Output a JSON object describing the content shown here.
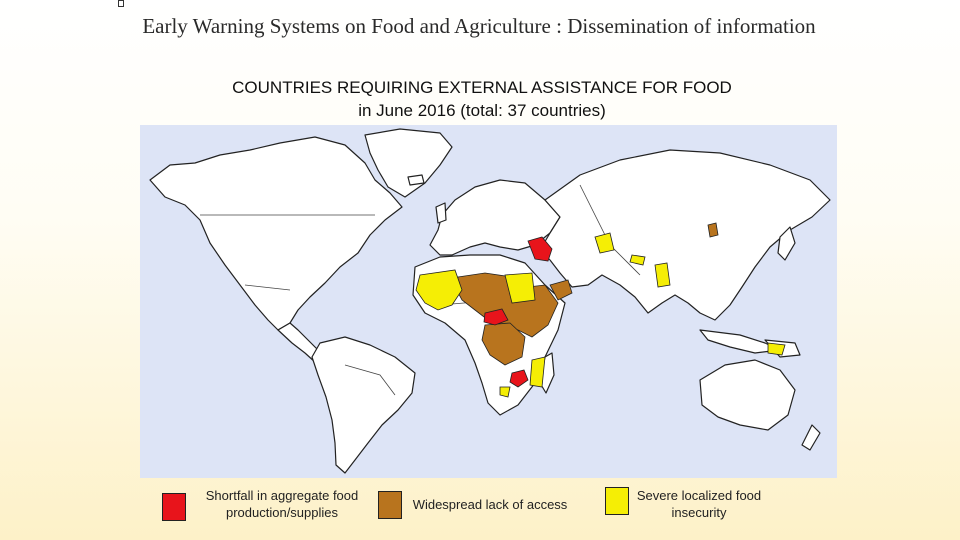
{
  "slide": {
    "title": "Early Warning Systems on Food and Agriculture : Dissemination of information"
  },
  "map": {
    "heading_line1": "COUNTRIES REQUIRING EXTERNAL ASSISTANCE FOR FOOD",
    "heading_line2": "in June 2016 (total: 37 countries)",
    "colors": {
      "ocean": "#dde4f6",
      "land": "#ffffff",
      "border": "#222222",
      "shortfall": "#e8141b",
      "widespread": "#b8741e",
      "localized": "#f5ee05"
    }
  },
  "legend": [
    {
      "label_line1": "Shortfall in aggregate food",
      "label_line2": "production/supplies",
      "color": "#e8141b"
    },
    {
      "label_line1": "Widespread lack of access",
      "label_line2": "",
      "color": "#b8741e"
    },
    {
      "label_line1": "Severe localized food",
      "label_line2": "insecurity",
      "color": "#f5ee05"
    }
  ]
}
